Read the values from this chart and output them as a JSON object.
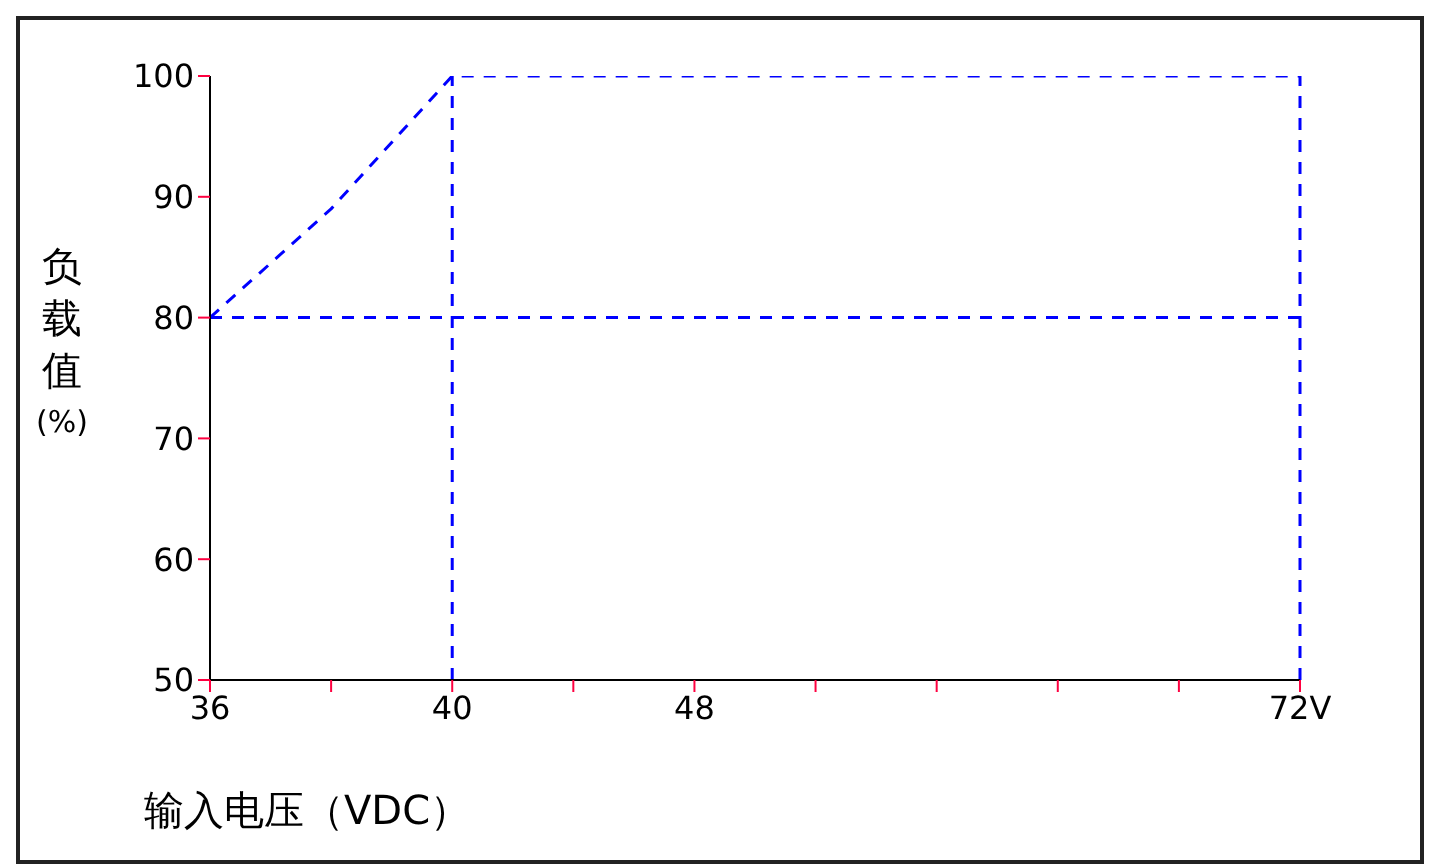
{
  "chart_data": {
    "type": "line",
    "xlabel": "输入电压（VDC）",
    "ylabel": "负载值(%)",
    "categories": [
      "36",
      null,
      "40",
      null,
      "48",
      null,
      null,
      null,
      null,
      "72V"
    ],
    "series": [
      {
        "color": "#0000ff",
        "values": [
          80,
          89,
          100,
          null,
          null,
          null,
          null,
          null,
          null,
          100
        ]
      },
      {
        "color": "#0000ff",
        "values": [
          80,
          80,
          80,
          80,
          80,
          80,
          80,
          80,
          80,
          80
        ]
      }
    ],
    "ylim": [
      50,
      100
    ],
    "yticks": [
      50,
      60,
      70,
      80,
      90,
      100
    ],
    "ref_lines": [
      {
        "axis": "x",
        "value": "40",
        "color": "#0000ff",
        "line_style": "dashed"
      },
      {
        "axis": "x",
        "value": "72V",
        "color": "#0000ff",
        "line_style": "dashed"
      }
    ],
    "line_style": "dashed",
    "marker": "none",
    "grid": false,
    "legend": false
  }
}
